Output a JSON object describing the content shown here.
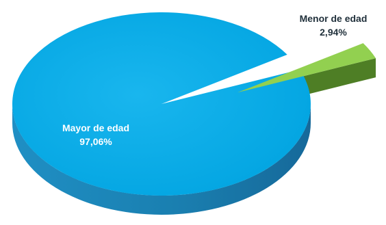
{
  "chart_data": {
    "type": "pie",
    "three_d": true,
    "title": "",
    "slices": [
      {
        "label": "Mayor de edad",
        "value_label": "97,06%",
        "value": 97.06,
        "color": "#00A9E6",
        "side_color": "#1A7FB0",
        "label_color": "#ffffff",
        "exploded": false
      },
      {
        "label": "Menor de edad",
        "value_label": "2,94%",
        "value": 2.94,
        "color": "#92D050",
        "side_color": "#4E7E25",
        "label_color": "#1F2F3A",
        "exploded": true
      }
    ]
  }
}
